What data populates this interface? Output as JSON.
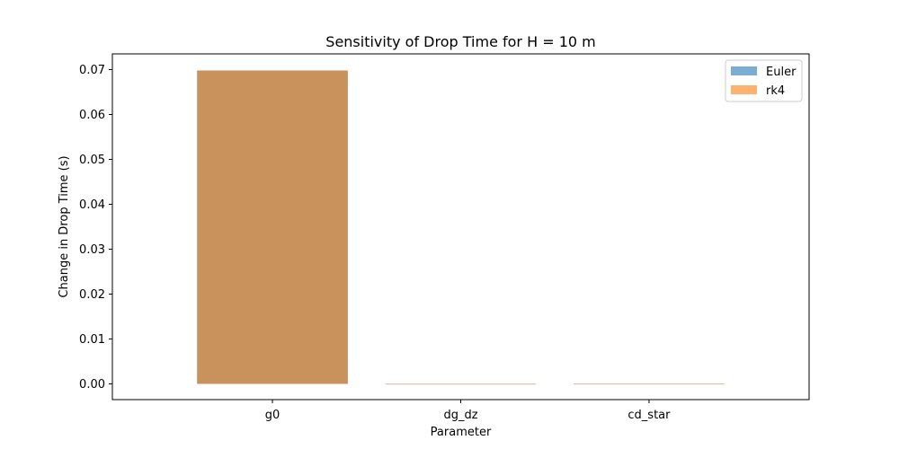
{
  "chart_data": {
    "type": "bar",
    "title": "Sensitivity of Drop Time for H = 10 m",
    "xlabel": "Parameter",
    "ylabel": "Change in Drop Time (s)",
    "categories": [
      "g0",
      "dg_dz",
      "cd_star"
    ],
    "series": [
      {
        "name": "Euler",
        "values": [
          0.0698,
          0.0,
          2e-05
        ],
        "color": "#1f77b4",
        "alpha": 0.6
      },
      {
        "name": "rk4",
        "values": [
          0.0698,
          0.0,
          0.0
        ],
        "color": "#ff7f0e",
        "alpha": 0.6
      }
    ],
    "ylim": [
      -0.0035,
      0.0735
    ],
    "yticks": [
      0.0,
      0.01,
      0.02,
      0.03,
      0.04,
      0.05,
      0.06,
      0.07
    ],
    "ytick_labels": [
      "0.00",
      "0.01",
      "0.02",
      "0.03",
      "0.04",
      "0.05",
      "0.06",
      "0.07"
    ],
    "grid": false,
    "legend_position": "top-right"
  }
}
